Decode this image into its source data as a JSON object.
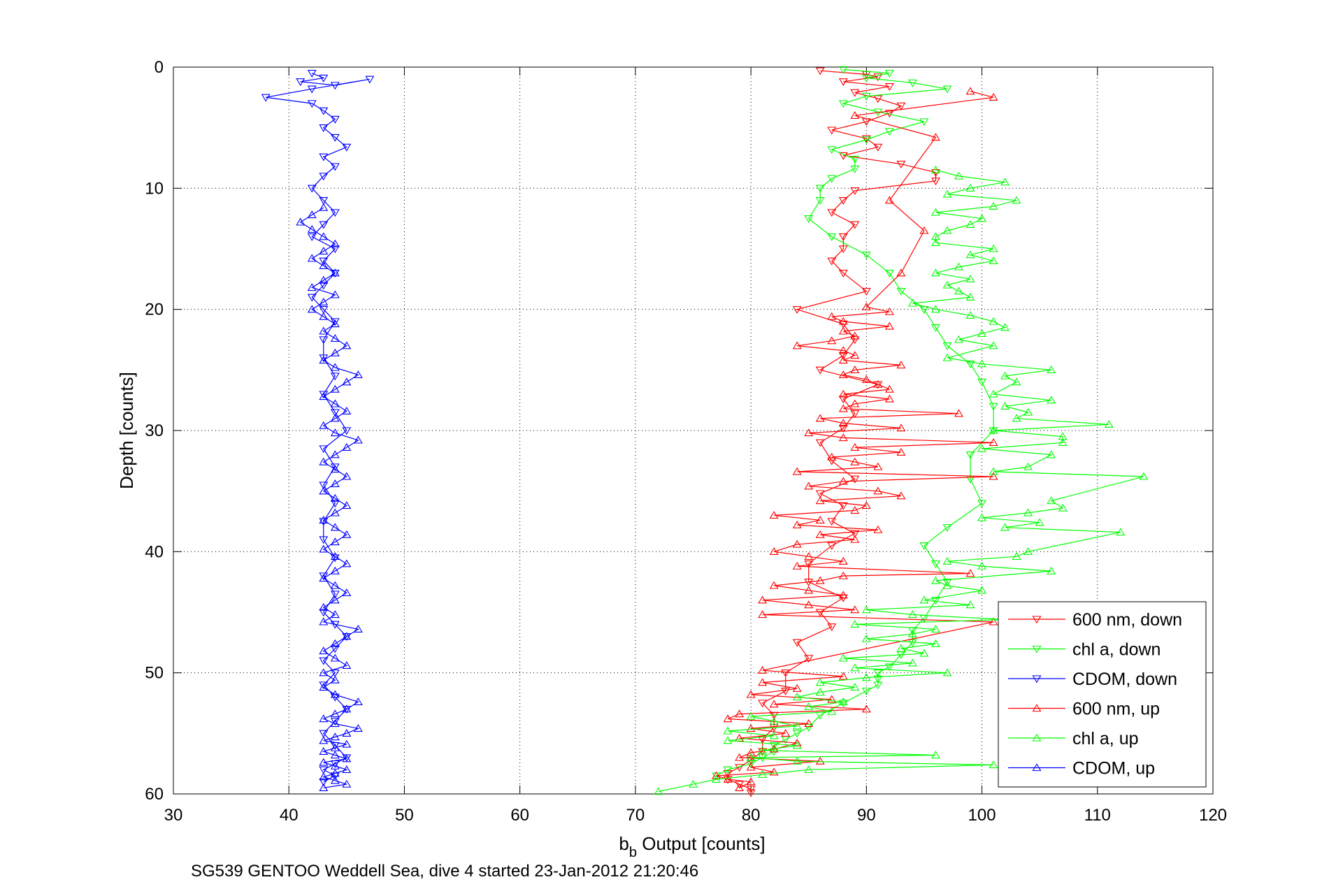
{
  "chart_data": {
    "type": "line",
    "xlabel": "b",
    "xlabel_sub": "b",
    "xlabel_rest": " Output [counts]",
    "ylabel": "Depth [counts]",
    "caption": "SG539 GENTOO Weddell Sea, dive 4 started 23-Jan-2012 21:20:46",
    "xlim": [
      30,
      120
    ],
    "ylim": [
      0,
      60
    ],
    "y_reversed": true,
    "x_ticks": [
      30,
      40,
      50,
      60,
      70,
      80,
      90,
      100,
      110,
      120
    ],
    "y_ticks": [
      0,
      10,
      20,
      30,
      40,
      50,
      60
    ],
    "grid": true,
    "legend_position": "bottom-right",
    "series": [
      {
        "name": "600 nm, down",
        "color": "#ff0000",
        "marker": "triangle-down",
        "x": [
          86,
          90,
          91,
          88,
          92,
          89,
          91,
          93,
          92,
          90,
          87,
          90,
          91,
          88,
          93,
          96,
          96,
          89,
          88,
          87,
          89,
          88,
          88,
          87,
          88,
          90,
          84,
          88,
          89,
          88,
          86,
          91,
          88,
          89,
          88,
          86,
          87,
          89,
          86,
          88,
          87,
          89,
          87,
          85,
          85,
          88,
          86,
          87,
          84,
          85,
          83,
          83,
          81,
          82,
          82,
          81,
          81,
          80,
          79,
          78,
          78,
          79,
          80,
          80
        ],
        "y": [
          0.3,
          0.6,
          0.8,
          1.2,
          1.6,
          2.1,
          2.6,
          3.2,
          3.8,
          4.5,
          5.2,
          5.9,
          6.6,
          7.3,
          8.0,
          8.7,
          9.4,
          10.2,
          11.0,
          12.0,
          13.0,
          14.0,
          15.0,
          16.0,
          17.0,
          18.5,
          20.0,
          21.2,
          22.5,
          23.8,
          25.0,
          26.2,
          27.4,
          28.6,
          29.8,
          31.0,
          32.5,
          34.0,
          35.2,
          36.2,
          37.5,
          38.5,
          39.5,
          41.0,
          42.5,
          43.8,
          45.0,
          46.2,
          47.5,
          48.8,
          50.0,
          51.5,
          52.5,
          53.5,
          54.5,
          55.5,
          56.5,
          57.2,
          57.8,
          58.3,
          58.8,
          59.2,
          59.6,
          59.9
        ]
      },
      {
        "name": "chl a, down",
        "color": "#00ff00",
        "marker": "triangle-down",
        "x": [
          88,
          92,
          90,
          94,
          97,
          90,
          88,
          91,
          95,
          92,
          90,
          87,
          89,
          89,
          87,
          86,
          86,
          85,
          87,
          90,
          92,
          93,
          95,
          96,
          97,
          99,
          100,
          101,
          101,
          99,
          99,
          100,
          97,
          95,
          96,
          97,
          96,
          95,
          94,
          94,
          93,
          92,
          91,
          91,
          91,
          90,
          88,
          86,
          85,
          84,
          83,
          82,
          82,
          81,
          80,
          78,
          77
        ],
        "y": [
          0.2,
          0.5,
          0.9,
          1.3,
          1.8,
          2.4,
          3.0,
          3.7,
          4.5,
          5.3,
          6.0,
          6.8,
          7.6,
          8.4,
          9.2,
          10.0,
          11.0,
          12.5,
          14.0,
          15.5,
          17.0,
          18.5,
          20.0,
          21.5,
          23.0,
          24.5,
          26.0,
          28.0,
          30.0,
          32.0,
          34.0,
          36.0,
          38.0,
          39.5,
          41.0,
          42.5,
          44.0,
          45.5,
          46.5,
          47.5,
          48.5,
          49.5,
          50.0,
          50.5,
          51.0,
          51.5,
          52.5,
          53.5,
          54.5,
          55.0,
          55.5,
          56.0,
          56.5,
          57.0,
          57.5,
          58.0,
          58.5
        ]
      },
      {
        "name": "CDOM, down",
        "color": "#0000ff",
        "marker": "triangle-down",
        "x": [
          42,
          43,
          41,
          44,
          47,
          42,
          38,
          42,
          43,
          44,
          43,
          44,
          45,
          43,
          44,
          43,
          42,
          43,
          44,
          43,
          42,
          44,
          43,
          44,
          43,
          42,
          43,
          44,
          43,
          43,
          44,
          43,
          44,
          45,
          43,
          44,
          43,
          44,
          43,
          43,
          44,
          43,
          44,
          43,
          44,
          45,
          44,
          43,
          44,
          43,
          44,
          45,
          44,
          43,
          44,
          45,
          44,
          43,
          44,
          43
        ],
        "y": [
          0.5,
          0.9,
          1.2,
          1.5,
          1.0,
          1.8,
          2.5,
          3.0,
          3.6,
          4.3,
          5.0,
          5.8,
          6.6,
          7.4,
          8.2,
          9.0,
          10.0,
          11.0,
          12.0,
          13.0,
          14.0,
          15.0,
          16.0,
          17.0,
          18.0,
          19.0,
          20.0,
          21.0,
          22.5,
          24.0,
          25.5,
          27.0,
          28.5,
          30.0,
          31.5,
          33.0,
          34.5,
          36.0,
          37.5,
          39.0,
          40.5,
          42.0,
          43.5,
          45.0,
          46.0,
          47.0,
          48.0,
          49.0,
          50.0,
          51.0,
          52.0,
          53.0,
          54.0,
          55.0,
          56.0,
          57.0,
          57.5,
          58.0,
          58.5,
          59.0
        ]
      },
      {
        "name": "600 nm, up",
        "color": "#ff0000",
        "marker": "triangle-up",
        "x": [
          79,
          80,
          78,
          77,
          82,
          80,
          86,
          79,
          80,
          82,
          84,
          79,
          83,
          80,
          85,
          78,
          79,
          90,
          82,
          87,
          80,
          84,
          81,
          88,
          81,
          101,
          81,
          89,
          85,
          81,
          88,
          85,
          82,
          86,
          88,
          99,
          84,
          88,
          85,
          82,
          84,
          89,
          86,
          91,
          84,
          86,
          82,
          89,
          90,
          86,
          93,
          91,
          85,
          88,
          101,
          84,
          91,
          89,
          87,
          93,
          89,
          101,
          88,
          85,
          93,
          88,
          86,
          98,
          88,
          89,
          92,
          88,
          92,
          91,
          90,
          88,
          89,
          93,
          88,
          89,
          88,
          84,
          87,
          89,
          88,
          92,
          88,
          87,
          92,
          90,
          93,
          95,
          92,
          96,
          89,
          101,
          99
        ],
        "y": [
          59.5,
          59.0,
          58.8,
          58.5,
          58.2,
          57.8,
          57.3,
          57.0,
          56.6,
          56.3,
          55.8,
          55.4,
          55.0,
          54.6,
          54.2,
          53.8,
          53.4,
          53.0,
          52.6,
          52.2,
          51.8,
          51.3,
          50.8,
          50.3,
          49.8,
          45.8,
          45.2,
          44.8,
          44.4,
          44.0,
          43.6,
          43.2,
          42.8,
          42.4,
          42.0,
          41.8,
          41.2,
          40.8,
          40.4,
          40.0,
          39.4,
          39.0,
          38.6,
          38.2,
          37.8,
          37.4,
          37.0,
          36.6,
          36.2,
          35.8,
          35.4,
          35.0,
          34.6,
          34.2,
          33.8,
          33.4,
          33.0,
          32.6,
          32.2,
          31.8,
          31.4,
          31.0,
          30.6,
          30.2,
          29.8,
          29.4,
          29.0,
          28.6,
          28.2,
          27.8,
          27.4,
          27.0,
          26.6,
          26.2,
          25.8,
          25.4,
          25.0,
          24.6,
          24.2,
          23.8,
          23.4,
          23.0,
          22.6,
          22.2,
          21.8,
          21.4,
          21.0,
          20.6,
          20.2,
          19.8,
          17.0,
          13.5,
          11.0,
          5.8,
          4.0,
          2.5,
          2.0
        ]
      },
      {
        "name": "chl a, up",
        "color": "#00ff00",
        "marker": "triangle-up",
        "x": [
          72,
          75,
          77,
          81,
          85,
          101,
          84,
          80,
          96,
          81,
          84,
          78,
          82,
          78,
          84,
          82,
          80,
          87,
          85,
          88,
          84,
          86,
          89,
          86,
          90,
          97,
          89,
          94,
          88,
          95,
          93,
          96,
          90,
          94,
          96,
          89,
          102,
          94,
          90,
          99,
          95,
          100,
          97,
          96,
          106,
          100,
          97,
          103,
          104,
          112,
          102,
          105,
          100,
          104,
          107,
          106,
          114,
          101,
          104,
          106,
          100,
          107,
          107,
          101,
          111,
          103,
          104,
          102,
          106,
          101,
          103,
          102,
          106,
          100,
          97,
          101,
          98,
          100,
          102,
          101,
          99,
          96,
          94,
          99,
          98,
          97,
          99,
          96,
          98,
          101,
          99,
          101,
          96,
          96,
          97,
          99,
          100,
          96,
          101,
          103,
          97,
          99,
          102,
          98,
          96
        ],
        "y": [
          59.8,
          59.2,
          58.8,
          58.4,
          58.0,
          57.6,
          57.3,
          57.0,
          56.8,
          56.4,
          56.0,
          55.6,
          55.2,
          54.8,
          54.4,
          54.0,
          53.6,
          53.2,
          52.8,
          52.4,
          52.0,
          51.6,
          51.2,
          50.8,
          50.4,
          50.0,
          49.6,
          49.2,
          48.8,
          48.4,
          48.0,
          47.6,
          47.2,
          46.8,
          46.4,
          46.0,
          45.6,
          45.2,
          44.8,
          44.4,
          44.0,
          43.2,
          42.8,
          42.4,
          41.6,
          41.2,
          40.8,
          40.4,
          40.0,
          38.4,
          38.0,
          37.6,
          37.2,
          36.8,
          36.4,
          35.8,
          33.8,
          33.4,
          33.0,
          32.0,
          31.5,
          31.0,
          30.5,
          30.0,
          29.5,
          29.0,
          28.5,
          28.0,
          27.5,
          27.0,
          26.0,
          25.5,
          25.0,
          24.5,
          24.0,
          23.0,
          22.5,
          22.0,
          21.5,
          21.0,
          20.5,
          20.0,
          19.5,
          19.0,
          18.5,
          18.0,
          17.5,
          17.0,
          16.5,
          16.0,
          15.5,
          15.0,
          14.5,
          14.0,
          13.5,
          13.0,
          12.5,
          12.0,
          11.5,
          11.0,
          10.5,
          10.0,
          9.5,
          9.0,
          8.5
        ]
      },
      {
        "name": "CDOM, up",
        "color": "#0000ff",
        "marker": "triangle-up",
        "x": [
          43,
          45,
          44,
          43,
          44,
          45,
          44,
          43,
          45,
          44,
          43,
          44,
          45,
          43,
          44,
          45,
          46,
          44,
          43,
          44,
          45,
          46,
          44,
          43,
          44,
          43,
          45,
          44,
          43,
          44,
          45,
          46,
          43,
          44,
          43,
          44,
          45,
          44,
          43,
          44,
          45,
          44,
          43,
          44,
          45,
          44,
          43,
          44,
          45,
          44,
          43,
          44,
          45,
          44,
          43,
          44,
          45,
          46,
          44,
          43,
          44,
          45,
          44,
          43,
          44,
          45,
          46,
          44,
          43,
          44,
          45,
          44,
          43,
          44,
          43,
          42,
          43,
          44,
          42,
          43,
          44,
          43,
          42,
          43,
          44,
          43,
          42,
          41,
          42,
          43
        ],
        "y": [
          59.5,
          59.2,
          58.9,
          58.6,
          58.3,
          58.0,
          57.7,
          57.4,
          57.1,
          56.8,
          56.5,
          56.2,
          55.9,
          55.6,
          55.3,
          55.0,
          54.6,
          54.2,
          53.8,
          53.4,
          53.0,
          52.4,
          51.8,
          51.2,
          50.6,
          50.0,
          49.4,
          48.8,
          48.2,
          47.6,
          47.0,
          46.4,
          45.8,
          45.2,
          44.6,
          44.0,
          43.4,
          42.8,
          42.2,
          41.6,
          41.0,
          40.4,
          39.8,
          39.2,
          38.6,
          38.0,
          37.4,
          36.8,
          36.2,
          35.6,
          35.0,
          34.4,
          33.8,
          33.2,
          32.6,
          32.0,
          31.4,
          30.8,
          30.2,
          29.6,
          29.0,
          28.4,
          27.8,
          27.2,
          26.6,
          26.0,
          25.4,
          24.8,
          24.2,
          23.6,
          23.0,
          22.4,
          21.8,
          21.2,
          20.6,
          20.0,
          19.4,
          18.8,
          18.2,
          17.6,
          17.0,
          16.4,
          15.8,
          15.2,
          14.6,
          14.0,
          13.4,
          12.8,
          12.2,
          11.6
        ]
      }
    ]
  }
}
